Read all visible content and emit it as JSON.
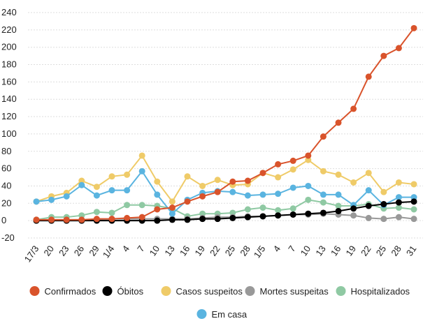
{
  "chart_data": {
    "type": "line",
    "categories": [
      "17/3",
      "20",
      "23",
      "26",
      "29",
      "1/4",
      "4",
      "7",
      "10",
      "13",
      "16",
      "19",
      "22",
      "25",
      "28",
      "1/5",
      "4",
      "7",
      "10",
      "13",
      "16",
      "19",
      "22",
      "25",
      "28",
      "31"
    ],
    "series": [
      {
        "name": "Confirmados",
        "color": "#d9532b",
        "values": [
          1,
          1,
          1,
          1,
          2,
          2,
          3,
          4,
          13,
          15,
          22,
          28,
          33,
          45,
          46,
          55,
          65,
          69,
          75,
          97,
          113,
          129,
          166,
          190,
          199,
          222
        ]
      },
      {
        "name": "Óbitos",
        "color": "#000000",
        "values": [
          0,
          0,
          0,
          0,
          0,
          0,
          0,
          0,
          0,
          1,
          1,
          2,
          2,
          3,
          4,
          5,
          6,
          7,
          8,
          9,
          11,
          14,
          17,
          19,
          21,
          22
        ]
      },
      {
        "name": "Casos suspeitos",
        "color": "#efcb68",
        "values": [
          22,
          28,
          32,
          46,
          39,
          51,
          53,
          75,
          45,
          22,
          51,
          40,
          47,
          41,
          42,
          55,
          50,
          59,
          70,
          57,
          53,
          44,
          55,
          33,
          44,
          42
        ]
      },
      {
        "name": "Mortes suspeitas",
        "color": "#999999",
        "values": [
          1,
          1,
          1,
          1,
          1,
          2,
          2,
          2,
          2,
          2,
          2,
          3,
          4,
          4,
          5,
          5,
          6,
          7,
          7,
          8,
          7,
          6,
          3,
          2,
          4,
          2
        ]
      },
      {
        "name": "Hospitalizados",
        "color": "#8fc9a3",
        "values": [
          1,
          4,
          4,
          6,
          10,
          9,
          18,
          18,
          17,
          14,
          5,
          8,
          8,
          9,
          13,
          15,
          12,
          14,
          24,
          21,
          17,
          17,
          19,
          14,
          15,
          13
        ]
      },
      {
        "name": "Em casa",
        "color": "#5ab4e0",
        "values": [
          22,
          24,
          28,
          41,
          29,
          35,
          35,
          57,
          30,
          8,
          24,
          32,
          34,
          33,
          29,
          30,
          31,
          38,
          40,
          30,
          30,
          18,
          35,
          18,
          27,
          27
        ]
      }
    ],
    "ylim": [
      -20,
      240
    ],
    "yticks": [
      -20,
      0,
      20,
      40,
      60,
      80,
      100,
      120,
      140,
      160,
      180,
      200,
      220,
      240
    ],
    "grid": true
  }
}
